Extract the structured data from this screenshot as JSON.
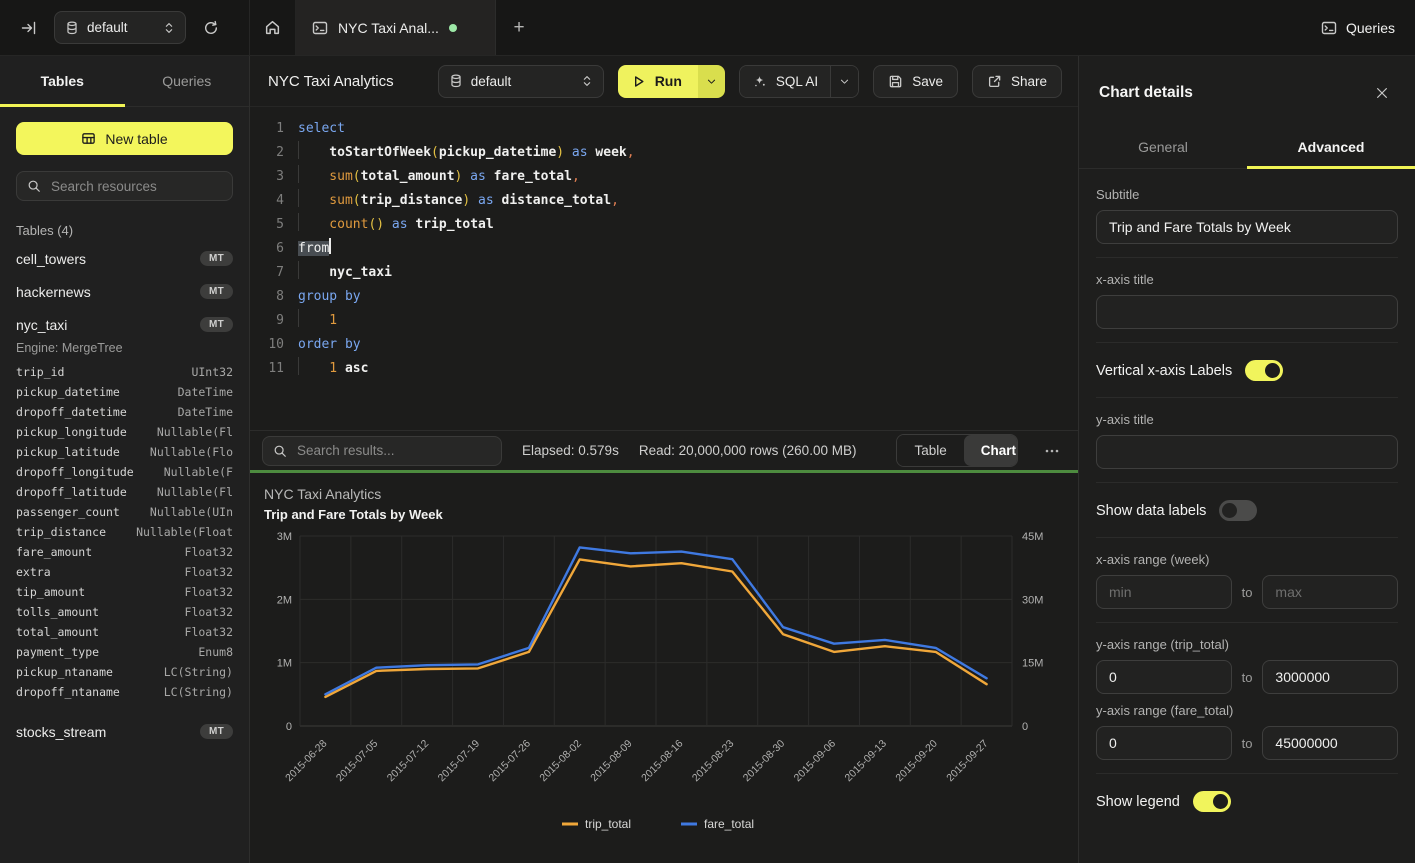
{
  "topbar": {
    "database_selector": "default",
    "tab_title": "NYC Taxi Anal...",
    "queries_label": "Queries"
  },
  "sidebar": {
    "tabs": [
      "Tables",
      "Queries"
    ],
    "new_table_label": "New table",
    "search_placeholder": "Search resources",
    "section_label": "Tables (4)",
    "tables": [
      {
        "name": "cell_towers",
        "badge": "MT"
      },
      {
        "name": "hackernews",
        "badge": "MT"
      },
      {
        "name": "nyc_taxi",
        "badge": "MT",
        "engine": "Engine: MergeTree",
        "columns": [
          [
            "trip_id",
            "UInt32"
          ],
          [
            "pickup_datetime",
            "DateTime"
          ],
          [
            "dropoff_datetime",
            "DateTime"
          ],
          [
            "pickup_longitude",
            "Nullable(Fl"
          ],
          [
            "pickup_latitude",
            "Nullable(Flo"
          ],
          [
            "dropoff_longitude",
            "Nullable(F"
          ],
          [
            "dropoff_latitude",
            "Nullable(Fl"
          ],
          [
            "passenger_count",
            "Nullable(UIn"
          ],
          [
            "trip_distance",
            "Nullable(Float"
          ],
          [
            "fare_amount",
            "Float32"
          ],
          [
            "extra",
            "Float32"
          ],
          [
            "tip_amount",
            "Float32"
          ],
          [
            "tolls_amount",
            "Float32"
          ],
          [
            "total_amount",
            "Float32"
          ],
          [
            "payment_type",
            "Enum8"
          ],
          [
            "pickup_ntaname",
            "LC(String)"
          ],
          [
            "dropoff_ntaname",
            "LC(String)"
          ]
        ]
      },
      {
        "name": "stocks_stream",
        "badge": "MT"
      }
    ]
  },
  "header": {
    "title": "NYC Taxi Analytics",
    "database_selector": "default",
    "run_label": "Run",
    "sql_ai_label": "SQL AI",
    "save_label": "Save",
    "share_label": "Share"
  },
  "editor": {
    "lines": [
      {
        "n": "1",
        "indent": 0,
        "tokens": [
          [
            "kw",
            "select"
          ]
        ]
      },
      {
        "n": "2",
        "indent": 1,
        "tokens": [
          [
            "fnw",
            "toStartOfWeek"
          ],
          [
            "par",
            "("
          ],
          [
            "id",
            "pickup_datetime"
          ],
          [
            "par",
            ")"
          ],
          [
            "kw",
            " as "
          ],
          [
            "id",
            "week"
          ],
          [
            "pun",
            ","
          ]
        ]
      },
      {
        "n": "3",
        "indent": 1,
        "tokens": [
          [
            "fn",
            "sum"
          ],
          [
            "par",
            "("
          ],
          [
            "id",
            "total_amount"
          ],
          [
            "par",
            ")"
          ],
          [
            "kw",
            " as "
          ],
          [
            "id",
            "fare_total"
          ],
          [
            "pun",
            ","
          ]
        ]
      },
      {
        "n": "4",
        "indent": 1,
        "tokens": [
          [
            "fn",
            "sum"
          ],
          [
            "par",
            "("
          ],
          [
            "id",
            "trip_distance"
          ],
          [
            "par",
            ")"
          ],
          [
            "kw",
            " as "
          ],
          [
            "id",
            "distance_total"
          ],
          [
            "pun",
            ","
          ]
        ]
      },
      {
        "n": "5",
        "indent": 1,
        "tokens": [
          [
            "fn",
            "count"
          ],
          [
            "par",
            "()"
          ],
          [
            "kw",
            " as "
          ],
          [
            "id",
            "trip_total"
          ]
        ]
      },
      {
        "n": "6",
        "indent": 0,
        "tokens": [
          [
            "sel",
            "from"
          ],
          [
            "caret",
            ""
          ]
        ]
      },
      {
        "n": "7",
        "indent": 1,
        "tokens": [
          [
            "id",
            "nyc_taxi"
          ]
        ]
      },
      {
        "n": "8",
        "indent": 0,
        "tokens": [
          [
            "kw",
            "group by"
          ]
        ]
      },
      {
        "n": "9",
        "indent": 1,
        "tokens": [
          [
            "num",
            "1"
          ]
        ]
      },
      {
        "n": "10",
        "indent": 0,
        "tokens": [
          [
            "kw",
            "order by"
          ]
        ]
      },
      {
        "n": "11",
        "indent": 1,
        "tokens": [
          [
            "num",
            "1"
          ],
          [
            "id",
            " asc"
          ]
        ]
      }
    ]
  },
  "results_bar": {
    "search_placeholder": "Search results...",
    "elapsed": "Elapsed: 0.579s",
    "read": "Read: 20,000,000 rows (260.00 MB)",
    "view_toggle": [
      "Table",
      "Chart"
    ],
    "active_view": "Chart"
  },
  "chart_data": {
    "type": "line",
    "title": "NYC Taxi Analytics",
    "subtitle": "Trip and Fare Totals by Week",
    "categories": [
      "2015-06-28",
      "2015-07-05",
      "2015-07-12",
      "2015-07-19",
      "2015-07-26",
      "2015-08-02",
      "2015-08-09",
      "2015-08-16",
      "2015-08-23",
      "2015-08-30",
      "2015-09-06",
      "2015-09-13",
      "2015-09-20",
      "2015-09-27"
    ],
    "series": [
      {
        "name": "trip_total",
        "color": "#f0a73a",
        "axis": "left",
        "values": [
          460000,
          870000,
          900000,
          910000,
          1170000,
          2630000,
          2520000,
          2570000,
          2440000,
          1450000,
          1170000,
          1260000,
          1170000,
          660000
        ]
      },
      {
        "name": "fare_total",
        "color": "#3f79e1",
        "axis": "right",
        "values": [
          7500000,
          13800000,
          14400000,
          14600000,
          18500000,
          42300000,
          40900000,
          41300000,
          39500000,
          23400000,
          19500000,
          20400000,
          18500000,
          11300000
        ]
      }
    ],
    "left_axis": {
      "min": 0,
      "max": 3000000,
      "ticks": [
        "0",
        "1M",
        "2M",
        "3M"
      ]
    },
    "right_axis": {
      "min": 0,
      "max": 45000000,
      "ticks": [
        "0",
        "15M",
        "30M",
        "45M"
      ]
    },
    "legend_position": "bottom",
    "grid": true
  },
  "chart_panel": {
    "title": "Chart details",
    "tabs": [
      {
        "label": "General",
        "active": false
      },
      {
        "label": "Advanced",
        "active": true
      }
    ],
    "fields": {
      "subtitle_label": "Subtitle",
      "subtitle_value": "Trip and Fare Totals by Week",
      "x_axis_title_label": "x-axis title",
      "x_axis_title_value": "",
      "vertical_x_labels_label": "Vertical x-axis Labels",
      "vertical_x_labels_on": true,
      "y_axis_title_label": "y-axis title",
      "y_axis_title_value": "",
      "show_data_labels_label": "Show data labels",
      "show_data_labels_on": false,
      "x_axis_range_label": "x-axis range (week)",
      "x_range_min_placeholder": "min",
      "x_range_max_placeholder": "max",
      "to_label": "to",
      "y_axis_range_trip_label": "y-axis range (trip_total)",
      "y_range_trip_min": "0",
      "y_range_trip_max": "3000000",
      "y_axis_range_fare_label": "y-axis range (fare_total)",
      "y_range_fare_min": "0",
      "y_range_fare_max": "45000000",
      "show_legend_label": "Show legend",
      "show_legend_on": true
    }
  }
}
